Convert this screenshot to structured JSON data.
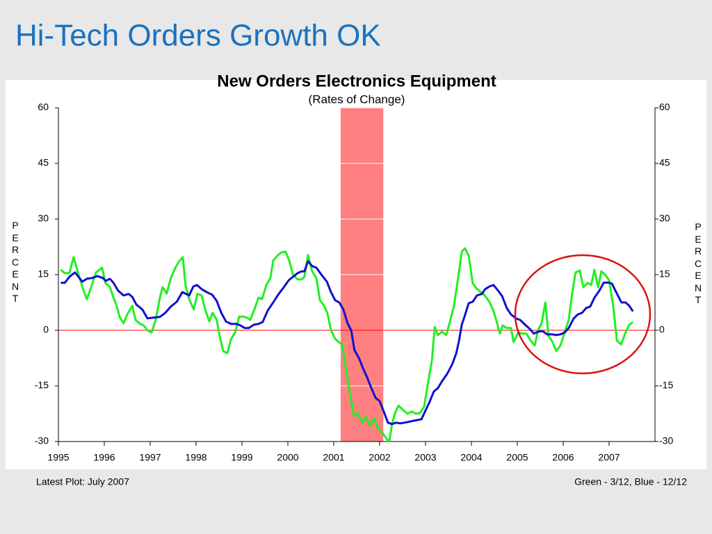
{
  "page_title": "Hi-Tech Orders Growth OK",
  "chart_data": {
    "type": "line",
    "title": "New Orders Electronics Equipment",
    "subtitle": "(Rates of Change)",
    "ylabel": "PERCENT",
    "y2label": "PERCENT",
    "xlim": [
      1995,
      2008
    ],
    "xticks": [
      1995,
      1996,
      1997,
      1998,
      1999,
      2000,
      2001,
      2002,
      2003,
      2004,
      2005,
      2006,
      2007
    ],
    "ylim": [
      -30,
      60
    ],
    "yticks": [
      -30,
      -15,
      0,
      15,
      30,
      45,
      60
    ],
    "y2lim": [
      -30,
      60
    ],
    "y2ticks": [
      -30,
      -15,
      0,
      15,
      30,
      45,
      60
    ],
    "grid": true,
    "grid_color": "#ffffff",
    "reference_line": {
      "value": 0,
      "color": "#ff0000"
    },
    "shaded_region": {
      "x": [
        2001.15,
        2002.08
      ],
      "color": "#ff8080"
    },
    "series": [
      {
        "name": "Green - 3/12",
        "color": "#22ee22",
        "x": [
          1995.05,
          1995.14,
          1995.24,
          1995.33,
          1995.44,
          1995.55,
          1995.62,
          1995.73,
          1995.82,
          1995.95,
          1996.03,
          1996.12,
          1996.2,
          1996.27,
          1996.33,
          1996.42,
          1996.5,
          1996.61,
          1996.68,
          1996.76,
          1996.86,
          1996.94,
          1997.03,
          1997.12,
          1997.21,
          1997.27,
          1997.36,
          1997.45,
          1997.55,
          1997.62,
          1997.71,
          1997.77,
          1997.85,
          1997.95,
          1998.03,
          1998.12,
          1998.21,
          1998.29,
          1998.36,
          1998.45,
          1998.52,
          1998.59,
          1998.68,
          1998.76,
          1998.85,
          1998.94,
          1999.03,
          1999.11,
          1999.18,
          1999.27,
          1999.36,
          1999.44,
          1999.53,
          1999.62,
          1999.68,
          1999.77,
          1999.86,
          1999.95,
          2000.03,
          2000.11,
          2000.21,
          2000.3,
          2000.36,
          2000.44,
          2000.53,
          2000.62,
          2000.7,
          2000.79,
          2000.86,
          2000.94,
          2001.03,
          2001.11,
          2001.18,
          2001.26,
          2001.35,
          2001.44,
          2001.53,
          2001.62,
          2001.71,
          2001.79,
          2001.88,
          2001.97,
          2002.06,
          2002.14,
          2002.21,
          2002.27,
          2002.33,
          2002.41,
          2002.52,
          2002.61,
          2002.7,
          2002.79,
          2002.88,
          2002.97,
          2003.06,
          2003.14,
          2003.2,
          2003.27,
          2003.36,
          2003.45,
          2003.53,
          2003.62,
          2003.71,
          2003.79,
          2003.86,
          2003.94,
          2004.03,
          2004.11,
          2004.2,
          2004.29,
          2004.38,
          2004.47,
          2004.55,
          2004.62,
          2004.68,
          2004.77,
          2004.86,
          2004.92,
          2005.02,
          2005.11,
          2005.2,
          2005.29,
          2005.38,
          2005.45,
          2005.53,
          2005.61,
          2005.68,
          2005.77,
          2005.85,
          2005.94,
          2006.03,
          2006.12,
          2006.2,
          2006.27,
          2006.36,
          2006.44,
          2006.53,
          2006.61,
          2006.68,
          2006.76,
          2006.83,
          2006.91,
          2007.0,
          2007.09,
          2007.17,
          2007.26,
          2007.35,
          2007.44,
          2007.52
        ],
        "values": [
          16.3,
          15.4,
          15.4,
          19.7,
          15,
          10.7,
          8.4,
          12.2,
          15.6,
          16.9,
          12.6,
          11.8,
          8.8,
          6.6,
          3.7,
          1.9,
          4.3,
          6.6,
          2.8,
          1.9,
          1.3,
          0,
          -0.6,
          2.8,
          8.8,
          11.6,
          9.9,
          14.1,
          16.9,
          18.4,
          19.7,
          12.2,
          8.4,
          5.6,
          9.8,
          9.4,
          5.1,
          2.4,
          4.7,
          2.8,
          -1.9,
          -5.6,
          -6.2,
          -2.4,
          -0.6,
          3.7,
          3.7,
          3.4,
          2.8,
          5.6,
          8.8,
          8.4,
          12.2,
          14.1,
          18.8,
          20.1,
          21,
          21.2,
          18.8,
          15,
          13.7,
          13.7,
          14.4,
          20.3,
          15.9,
          14.1,
          8.1,
          6.6,
          4.7,
          0,
          -2.3,
          -3.2,
          -3.8,
          -9.9,
          -16.9,
          -23.1,
          -22.5,
          -24.9,
          -23.4,
          -25.7,
          -23.8,
          -26.6,
          -27.6,
          -29.1,
          -30,
          -25.3,
          -22.5,
          -20.3,
          -21.6,
          -22.5,
          -21.9,
          -22.5,
          -22.3,
          -20.6,
          -13.7,
          -8.1,
          0.9,
          -1.3,
          -0.4,
          -1.3,
          2.2,
          6.6,
          14.1,
          21.2,
          22.1,
          20.1,
          12.6,
          11.3,
          10.3,
          9.4,
          7.9,
          5.6,
          2.4,
          -0.9,
          1.3,
          0.6,
          0.6,
          -3.2,
          -0.6,
          -0.9,
          -0.9,
          -2.8,
          -4.1,
          0,
          1.9,
          7.5,
          -1.5,
          -3.2,
          -5.6,
          -4.1,
          -0.6,
          2.8,
          10.3,
          15.6,
          16.1,
          11.6,
          12.8,
          12.2,
          16.3,
          11.6,
          15.9,
          15,
          13.5,
          6.6,
          -2.8,
          -3.8,
          -0.9,
          1.5,
          2.2
        ]
      },
      {
        "name": "Blue - 12/12",
        "color": "#1010cc",
        "x": [
          1995.05,
          1995.14,
          1995.24,
          1995.36,
          1995.44,
          1995.52,
          1995.62,
          1995.73,
          1995.85,
          1995.97,
          1996.03,
          1996.12,
          1996.2,
          1996.3,
          1996.42,
          1996.53,
          1996.61,
          1996.7,
          1996.83,
          1996.94,
          1997.06,
          1997.21,
          1997.33,
          1997.45,
          1997.58,
          1997.7,
          1997.85,
          1997.94,
          1998.02,
          1998.12,
          1998.23,
          1998.35,
          1998.45,
          1998.55,
          1998.65,
          1998.76,
          1998.88,
          1998.97,
          1999.06,
          1999.15,
          1999.26,
          1999.36,
          1999.45,
          1999.56,
          1999.68,
          1999.79,
          1999.91,
          2000.02,
          2000.11,
          2000.21,
          2000.3,
          2000.36,
          2000.44,
          2000.53,
          2000.62,
          2000.73,
          2000.85,
          2000.94,
          2001.03,
          2001.12,
          2001.21,
          2001.3,
          2001.38,
          2001.45,
          2001.55,
          2001.64,
          2001.73,
          2001.82,
          2001.91,
          2002.0,
          2002.09,
          2002.18,
          2002.27,
          2002.36,
          2002.45,
          2002.59,
          2002.74,
          2002.91,
          2003.0,
          2003.09,
          2003.18,
          2003.27,
          2003.36,
          2003.47,
          2003.58,
          2003.67,
          2003.73,
          2003.79,
          2003.85,
          2003.94,
          2004.03,
          2004.12,
          2004.23,
          2004.3,
          2004.39,
          2004.48,
          2004.58,
          2004.67,
          2004.77,
          2004.86,
          2004.97,
          2005.06,
          2005.17,
          2005.27,
          2005.36,
          2005.45,
          2005.55,
          2005.65,
          2005.76,
          2005.85,
          2005.94,
          2006.03,
          2006.12,
          2006.23,
          2006.32,
          2006.41,
          2006.5,
          2006.59,
          2006.68,
          2006.79,
          2006.88,
          2006.97,
          2007.06,
          2007.17,
          2007.27,
          2007.36,
          2007.44,
          2007.52
        ],
        "values": [
          12.8,
          12.8,
          14.4,
          15.6,
          14.4,
          13.1,
          13.9,
          14.1,
          14.6,
          14.1,
          13.3,
          13.9,
          12.8,
          10.7,
          9.4,
          9.8,
          9,
          6.9,
          5.6,
          3.2,
          3.4,
          3.6,
          4.7,
          6.4,
          7.7,
          10.3,
          9.4,
          11.8,
          12.2,
          11.1,
          10.3,
          9.6,
          7.9,
          4.7,
          2.4,
          1.7,
          1.7,
          1.3,
          0.6,
          0.6,
          1.5,
          1.7,
          2.2,
          5.3,
          7.5,
          9.6,
          11.6,
          13.5,
          14.4,
          15.4,
          15.9,
          15.9,
          18.6,
          17.3,
          16.9,
          15,
          13.1,
          10.3,
          8.1,
          7.5,
          5.6,
          1.9,
          0,
          -5.3,
          -7.5,
          -10.3,
          -12.8,
          -15.6,
          -18.2,
          -19.1,
          -21.9,
          -24.9,
          -25.3,
          -24.9,
          -25.1,
          -24.8,
          -24.4,
          -24,
          -21.6,
          -19.3,
          -16.5,
          -15.6,
          -13.7,
          -11.8,
          -9.2,
          -6.2,
          -2.8,
          1.5,
          3.7,
          7.3,
          7.7,
          9.4,
          9.8,
          11.1,
          11.8,
          12.2,
          10.7,
          9.2,
          6,
          4.3,
          3.2,
          2.8,
          1.5,
          0.4,
          -0.9,
          -0.4,
          -0.2,
          -1.1,
          -1.1,
          -1.3,
          -1.1,
          -0.6,
          0.6,
          3.2,
          4.3,
          4.7,
          6,
          6.4,
          8.8,
          10.7,
          12.8,
          12.9,
          12.6,
          9.9,
          7.5,
          7.5,
          6.6,
          5.1
        ]
      }
    ],
    "footnote_left": "Latest Plot:  July 2007",
    "footnote_right": "Green - 3/12, Blue - 12/12"
  }
}
